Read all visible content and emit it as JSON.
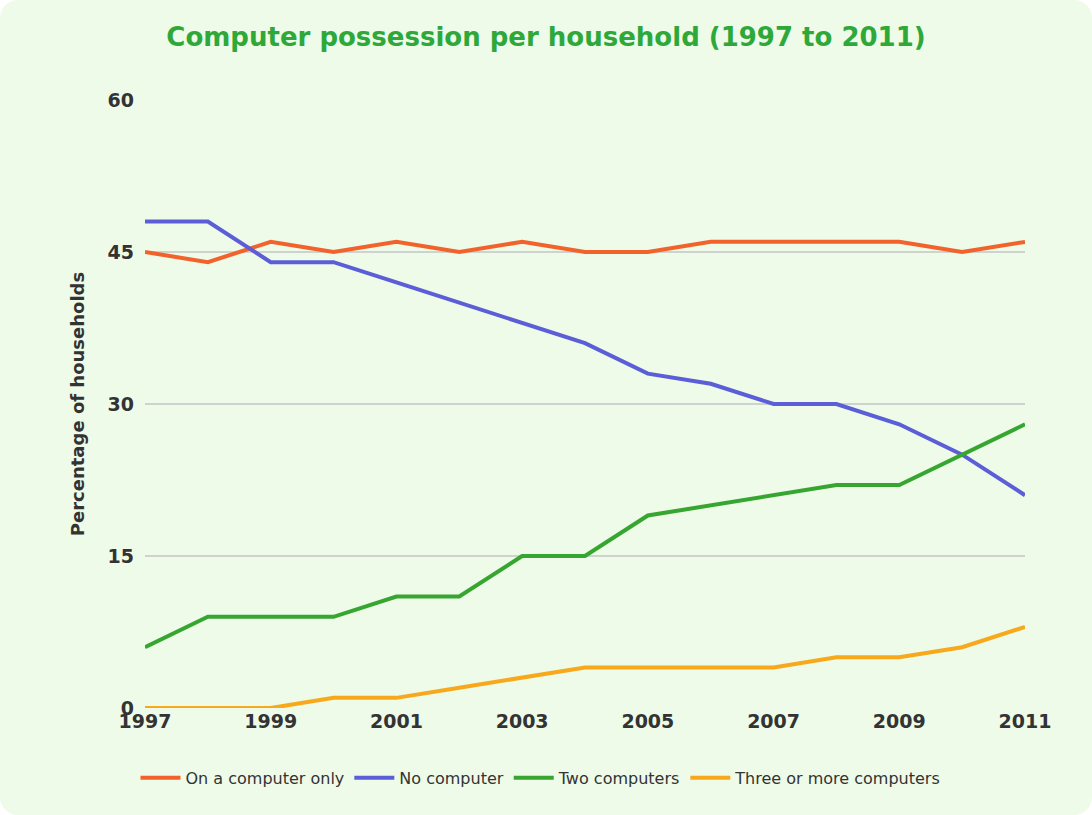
{
  "chart_data": {
    "type": "line",
    "title": "Computer possession per household (1997 to 2011)",
    "y_label": "Percentage of households",
    "x": [
      1997,
      1998,
      1999,
      2000,
      2001,
      2002,
      2003,
      2004,
      2005,
      2006,
      2007,
      2008,
      2009,
      2010,
      2011
    ],
    "xlim": [
      1997,
      2011
    ],
    "xticks": [
      1997,
      1999,
      2001,
      2003,
      2005,
      2007,
      2009,
      2011
    ],
    "ylim": [
      0,
      60
    ],
    "yticks": [
      0,
      15,
      30,
      45,
      60
    ],
    "grid": true,
    "legend": "bottom",
    "series": [
      {
        "name": "On a computer only",
        "color": "#f2622b",
        "line_style": "solid",
        "values": [
          45,
          44,
          46,
          45,
          46,
          45,
          46,
          45,
          45,
          46,
          46,
          46,
          46,
          45,
          46
        ]
      },
      {
        "name": "No computer",
        "color": "#5c5ed8",
        "line_style": "solid",
        "values": [
          48,
          48,
          44,
          44,
          42,
          40,
          38,
          36,
          33,
          32,
          30,
          30,
          28,
          25,
          21
        ]
      },
      {
        "name": "Two computers",
        "color": "#36a630",
        "line_style": "solid",
        "values": [
          6,
          9,
          9,
          9,
          11,
          11,
          15,
          15,
          19,
          20,
          21,
          22,
          22,
          25,
          28
        ]
      },
      {
        "name": "Three or more computers",
        "color": "#f7a81b",
        "line_style": "solid",
        "values": [
          0,
          0,
          0,
          1,
          1,
          2,
          3,
          4,
          4,
          4,
          4,
          5,
          5,
          6,
          8
        ]
      }
    ]
  }
}
